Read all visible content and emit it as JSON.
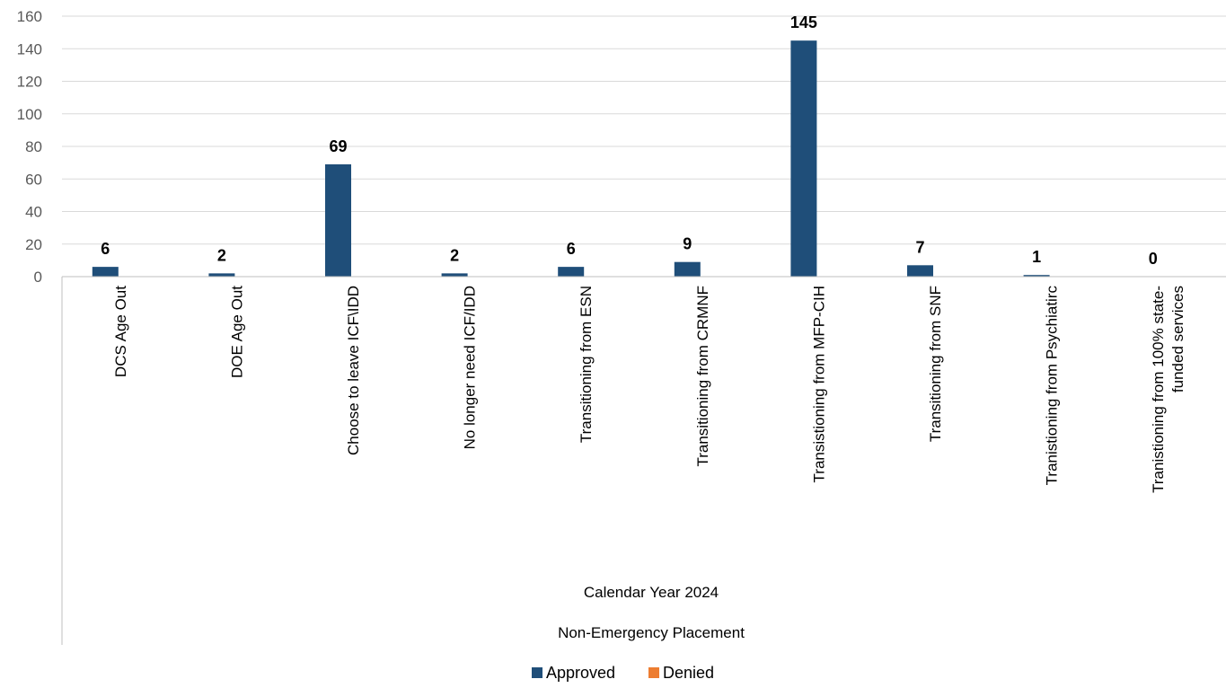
{
  "chart_data": {
    "type": "bar",
    "categories": [
      "DCS Age Out",
      "DOE Age Out",
      "Choose to leave ICF\\IDD",
      "No longer need ICF/IDD",
      "Transitioning from ESN",
      "Transitioning from CRMNF",
      "Transistioning from MFP-CIH",
      "Transitioning from SNF",
      "Tranistioning from Psychiatirc",
      "Tranistioning from 100% state-funded services"
    ],
    "category_label_lines": [
      [
        "DCS Age Out"
      ],
      [
        "DOE Age Out"
      ],
      [
        "Choose to leave ICF\\IDD"
      ],
      [
        "No longer need ICF/IDD"
      ],
      [
        "Transitioning from ESN"
      ],
      [
        "Transitioning from CRMNF"
      ],
      [
        "Transistioning from MFP-CIH"
      ],
      [
        "Transitioning from SNF"
      ],
      [
        "Tranistioning from Psychiatirc"
      ],
      [
        "Tranistioning from 100% state-",
        "funded services"
      ]
    ],
    "series": [
      {
        "name": "Approved",
        "color": "#1f4e79",
        "values": [
          6,
          2,
          69,
          2,
          6,
          9,
          145,
          7,
          1,
          0
        ]
      },
      {
        "name": "Denied",
        "color": "#ed7d31",
        "values": [
          0,
          0,
          0,
          0,
          0,
          0,
          0,
          0,
          0,
          0
        ]
      }
    ],
    "data_labels": [
      "6",
      "2",
      "69",
      "2",
      "6",
      "9",
      "145",
      "7",
      "1",
      "0"
    ],
    "group_labels": [
      "Calendar Year 2024",
      "Non-Emergency Placement"
    ],
    "yticks": [
      0,
      20,
      40,
      60,
      80,
      100,
      120,
      140,
      160
    ],
    "ylim": [
      0,
      160
    ],
    "grid": true,
    "legend_position": "bottom",
    "title": "",
    "xlabel": "",
    "ylabel": ""
  }
}
